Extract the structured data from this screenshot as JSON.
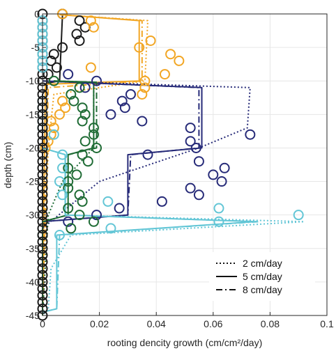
{
  "chart_data": {
    "type": "scatter",
    "title": "",
    "xlabel": "rooting dencity growth (cm/cm²/day)",
    "ylabel": "depth (cm)",
    "xlim": [
      0,
      0.1
    ],
    "ylim": [
      -45,
      0
    ],
    "xticks": [
      0,
      0.02,
      0.04,
      0.06,
      0.08,
      0.1
    ],
    "xtick_labels": [
      "0",
      "0.02",
      "0.04",
      "0.06",
      "0.08",
      "0.1"
    ],
    "yticks": [
      0,
      -5,
      -10,
      -15,
      -20,
      -25,
      -30,
      -35,
      -40,
      -45
    ],
    "ytick_labels": [
      "0",
      "-5",
      "-10",
      "-15",
      "-20",
      "-25",
      "-30",
      "-35",
      "-40",
      "-45"
    ],
    "grid": true,
    "legend_position": "bottom-right",
    "legend": [
      {
        "label": "2 cm/day",
        "dash": "dotted"
      },
      {
        "label": "5 cm/day",
        "dash": "solid"
      },
      {
        "label": "8 cm/day",
        "dash": "dashdot"
      }
    ],
    "colors": {
      "black": "#1a1a1a",
      "orange": "#f2a624",
      "navy": "#262a78",
      "green": "#1e6b34",
      "cyan": "#63c6d6",
      "grid": "#e6e6e6",
      "axis": "#262626"
    },
    "scatter_series": [
      {
        "color": "black",
        "points": [
          [
            0,
            0
          ],
          [
            0,
            -1
          ],
          [
            0,
            -2
          ],
          [
            0,
            -3
          ],
          [
            0,
            -4
          ],
          [
            0,
            -5
          ],
          [
            0,
            -6
          ],
          [
            0,
            -7
          ],
          [
            0,
            -8
          ],
          [
            0,
            -9
          ],
          [
            0.007,
            0
          ],
          [
            0.013,
            -1
          ],
          [
            0.015,
            -2
          ],
          [
            0.012,
            -3
          ],
          [
            0.013,
            -4
          ],
          [
            0.007,
            -5
          ],
          [
            0.004,
            -6
          ],
          [
            0.003,
            -7
          ],
          [
            0.005,
            -8
          ],
          [
            0.002,
            -9
          ]
        ]
      },
      {
        "color": "orange",
        "points": [
          [
            0.007,
            0
          ],
          [
            0.017,
            -1
          ],
          [
            0.018,
            -2
          ],
          [
            0.038,
            -4
          ],
          [
            0.034,
            -5
          ],
          [
            0.045,
            -6
          ],
          [
            0.048,
            -7
          ],
          [
            0.017,
            -8
          ],
          [
            0.043,
            -9
          ],
          [
            0.036,
            -10
          ],
          [
            0.036,
            -11
          ],
          [
            0.035,
            -12
          ],
          [
            0.007,
            -13
          ],
          [
            0.008,
            -14
          ],
          [
            0.006,
            -15
          ],
          [
            0.003,
            -16
          ],
          [
            0.004,
            -17
          ],
          [
            0.003,
            -18
          ],
          [
            0.002,
            -19
          ],
          [
            0.001,
            -20
          ]
        ]
      },
      {
        "color": "navy",
        "points": [
          [
            0.009,
            -9
          ],
          [
            0.019,
            -10
          ],
          [
            0.015,
            -11
          ],
          [
            0.031,
            -12
          ],
          [
            0.028,
            -13
          ],
          [
            0.029,
            -14
          ],
          [
            0.024,
            -15
          ],
          [
            0.035,
            -16
          ],
          [
            0.052,
            -17
          ],
          [
            0.073,
            -18
          ],
          [
            0.052,
            -19
          ],
          [
            0.054,
            -20
          ],
          [
            0.037,
            -21
          ],
          [
            0.055,
            -22
          ],
          [
            0.064,
            -23
          ],
          [
            0.06,
            -24
          ],
          [
            0.063,
            -25
          ],
          [
            0.052,
            -26
          ],
          [
            0.055,
            -27
          ],
          [
            0.042,
            -28
          ],
          [
            0.027,
            -29
          ],
          [
            0.019,
            -30
          ],
          [
            0.009,
            -31
          ]
        ]
      },
      {
        "color": "green",
        "points": [
          [
            0.004,
            -10
          ],
          [
            0.013,
            -11
          ],
          [
            0.01,
            -12
          ],
          [
            0.011,
            -13
          ],
          [
            0.014,
            -14
          ],
          [
            0.015,
            -15
          ],
          [
            0.014,
            -16
          ],
          [
            0.018,
            -17
          ],
          [
            0.018,
            -18
          ],
          [
            0.015,
            -19
          ],
          [
            0.019,
            -20
          ],
          [
            0.014,
            -21
          ],
          [
            0.016,
            -22
          ],
          [
            0.009,
            -23
          ],
          [
            0.012,
            -24
          ],
          [
            0.009,
            -25
          ],
          [
            0.009,
            -26
          ],
          [
            0.013,
            -27
          ],
          [
            0.014,
            -28
          ],
          [
            0.009,
            -29
          ],
          [
            0.013,
            -30
          ],
          [
            0.018,
            -31
          ],
          [
            0.01,
            -32
          ],
          [
            0,
            -33
          ]
        ]
      },
      {
        "color": "cyan",
        "points": [
          [
            0,
            -1
          ],
          [
            0,
            -2
          ],
          [
            0,
            -3
          ],
          [
            0,
            -4
          ],
          [
            0,
            -5
          ],
          [
            0,
            -6
          ],
          [
            0,
            -7
          ],
          [
            0,
            -8
          ],
          [
            0,
            -13
          ],
          [
            0,
            -14
          ],
          [
            0,
            -15
          ],
          [
            0,
            -16
          ],
          [
            0,
            -17
          ],
          [
            0.004,
            -18
          ],
          [
            0.007,
            -21
          ],
          [
            0.007,
            -23
          ],
          [
            0.006,
            -25
          ],
          [
            0.007,
            -27
          ],
          [
            0.023,
            -28
          ],
          [
            0.062,
            -29
          ],
          [
            0.09,
            -30
          ],
          [
            0.062,
            -31
          ],
          [
            0.024,
            -32
          ],
          [
            0.006,
            -33
          ]
        ]
      },
      {
        "color": "black",
        "points": [
          [
            0,
            -10
          ],
          [
            0,
            -11
          ],
          [
            0,
            -12
          ],
          [
            0,
            -13
          ],
          [
            0,
            -14
          ],
          [
            0,
            -15
          ],
          [
            0,
            -16
          ],
          [
            0,
            -17
          ],
          [
            0,
            -18
          ],
          [
            0,
            -19
          ],
          [
            0,
            -20
          ],
          [
            0,
            -21
          ],
          [
            0,
            -22
          ],
          [
            0,
            -23
          ],
          [
            0,
            -24
          ],
          [
            0,
            -25
          ],
          [
            0,
            -26
          ],
          [
            0,
            -27
          ],
          [
            0,
            -28
          ],
          [
            0,
            -29
          ],
          [
            0,
            -30
          ],
          [
            0,
            -31
          ],
          [
            0,
            -32
          ],
          [
            0,
            -33
          ],
          [
            0,
            -34
          ],
          [
            0,
            -35
          ],
          [
            0,
            -36
          ],
          [
            0,
            -37
          ],
          [
            0,
            -38
          ],
          [
            0,
            -39
          ],
          [
            0,
            -40
          ],
          [
            0,
            -41
          ],
          [
            0,
            -42
          ],
          [
            0,
            -43
          ],
          [
            0,
            -44
          ],
          [
            0,
            -45
          ]
        ]
      }
    ],
    "line_series": [
      {
        "color": "black",
        "dash": "solid",
        "points": [
          [
            0.007,
            0
          ],
          [
            0.007,
            -0.2
          ],
          [
            0.006,
            -10
          ],
          [
            0.002,
            -10.3
          ],
          [
            0,
            -12
          ],
          [
            0,
            -45
          ]
        ]
      },
      {
        "color": "orange",
        "dash": "solid",
        "points": [
          [
            0.006,
            -0.1
          ],
          [
            0.034,
            -1
          ],
          [
            0.034,
            -10
          ],
          [
            0.001,
            -10.5
          ],
          [
            0,
            -45
          ]
        ]
      },
      {
        "color": "orange",
        "dash": "dotted",
        "points": [
          [
            0.006,
            -0.1
          ],
          [
            0.037,
            -1
          ],
          [
            0.036,
            -10
          ],
          [
            0.004,
            -12
          ],
          [
            0.002,
            -20
          ],
          [
            0,
            -45
          ]
        ]
      },
      {
        "color": "orange",
        "dash": "dashdot",
        "points": [
          [
            0.006,
            -0.1
          ],
          [
            0.035,
            -1
          ],
          [
            0.035,
            -10
          ],
          [
            0.002,
            -11
          ],
          [
            0,
            -45
          ]
        ]
      },
      {
        "color": "navy",
        "dash": "solid",
        "points": [
          [
            0,
            -10
          ],
          [
            0.056,
            -11
          ],
          [
            0.056,
            -20
          ],
          [
            0.03,
            -21
          ],
          [
            0.03,
            -30
          ],
          [
            0,
            -31
          ],
          [
            0,
            -45
          ]
        ]
      },
      {
        "color": "navy",
        "dash": "dotted",
        "points": [
          [
            0,
            -10
          ],
          [
            0.073,
            -11
          ],
          [
            0.072,
            -17
          ],
          [
            0.055,
            -20
          ],
          [
            0.02,
            -25
          ],
          [
            0,
            -32
          ],
          [
            0,
            -45
          ]
        ]
      },
      {
        "color": "navy",
        "dash": "dashdot",
        "points": [
          [
            0,
            -10
          ],
          [
            0.055,
            -11
          ],
          [
            0.055,
            -20
          ],
          [
            0.031,
            -21
          ],
          [
            0.03,
            -30
          ],
          [
            0,
            -31
          ],
          [
            0,
            -45
          ]
        ]
      },
      {
        "color": "green",
        "dash": "solid",
        "points": [
          [
            0.004,
            -10
          ],
          [
            0.018,
            -10.2
          ],
          [
            0.018,
            -20
          ],
          [
            0.009,
            -21
          ],
          [
            0.009,
            -30
          ],
          [
            0,
            -31
          ],
          [
            0,
            -45
          ]
        ]
      },
      {
        "color": "green",
        "dash": "dotted",
        "points": [
          [
            0.004,
            -10
          ],
          [
            0.018,
            -10.2
          ],
          [
            0.018,
            -20
          ],
          [
            0.007,
            -25
          ],
          [
            0.002,
            -30
          ],
          [
            0,
            -45
          ]
        ]
      },
      {
        "color": "green",
        "dash": "dashdot",
        "points": [
          [
            0.004,
            -10
          ],
          [
            0.019,
            -10.2
          ],
          [
            0.019,
            -20
          ],
          [
            0.009,
            -21
          ],
          [
            0.009,
            -30
          ],
          [
            0,
            -31
          ],
          [
            0,
            -45
          ]
        ]
      },
      {
        "color": "cyan",
        "dash": "solid",
        "points": [
          [
            0,
            -20
          ],
          [
            0.008,
            -21
          ],
          [
            0.008,
            -30
          ],
          [
            0.075,
            -31
          ],
          [
            0.005,
            -33
          ],
          [
            0.005,
            -44
          ],
          [
            0,
            -44.5
          ]
        ]
      },
      {
        "color": "cyan",
        "dash": "dotted",
        "points": [
          [
            0,
            -20
          ],
          [
            0.008,
            -21
          ],
          [
            0.008,
            -30
          ],
          [
            0.092,
            -31
          ],
          [
            0.01,
            -33
          ],
          [
            0.003,
            -38
          ],
          [
            0.002,
            -44
          ],
          [
            0,
            -45
          ]
        ]
      },
      {
        "color": "cyan",
        "dash": "dashdot",
        "points": [
          [
            0,
            -20
          ],
          [
            0.008,
            -21
          ],
          [
            0.008,
            -30
          ],
          [
            0.076,
            -31
          ],
          [
            0.006,
            -33
          ],
          [
            0.005,
            -44
          ],
          [
            0,
            -44.5
          ]
        ]
      }
    ]
  }
}
